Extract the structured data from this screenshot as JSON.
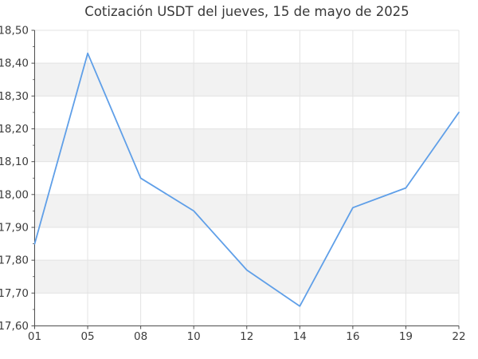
{
  "title": "Cotización USDT del jueves, 15 de mayo de 2025",
  "chart_data": {
    "type": "line",
    "title": "Cotización USDT del jueves, 15 de mayo de 2025",
    "x": [
      "01",
      "05",
      "08",
      "10",
      "12",
      "14",
      "16",
      "19",
      "22"
    ],
    "xlabel": "",
    "ylabel": "",
    "series": [
      {
        "name": "USDT",
        "values": [
          17.85,
          18.43,
          18.05,
          17.95,
          17.77,
          17.66,
          17.96,
          18.02,
          18.25
        ]
      }
    ],
    "ylim": [
      17.6,
      18.5
    ],
    "ytick_step": 0.1,
    "ytick_labels": [
      "17,60",
      "17,70",
      "17,80",
      "17,90",
      "18,00",
      "18,10",
      "18,20",
      "18,30",
      "18,40",
      "18,50"
    ],
    "grid": true,
    "legend": false,
    "band_pattern": "alternating horizontal stripes, white below top gridline then gray",
    "colors": {
      "line": "#5f9fe8",
      "band": "#f2f2f2",
      "grid": "#e3e3e3",
      "axis": "#4d4d4d",
      "tick_text": "#3d3d3d",
      "title_text": "#383838",
      "background": "#ffffff"
    }
  }
}
